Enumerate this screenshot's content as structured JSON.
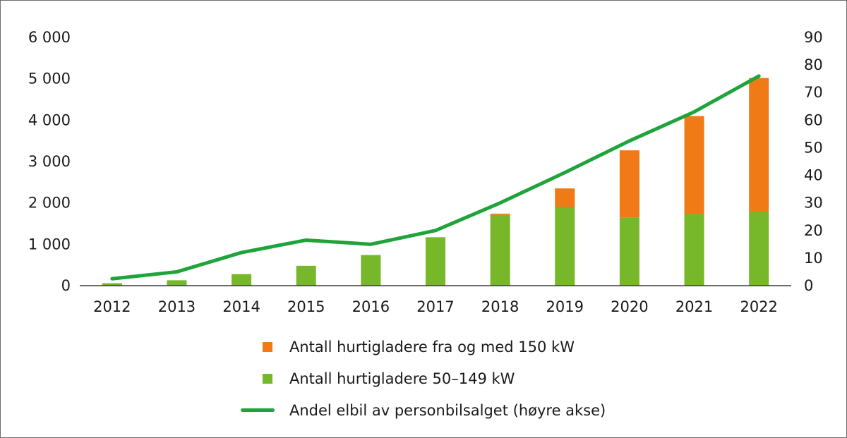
{
  "chart_data": {
    "type": "bar",
    "stacked": true,
    "categories": [
      "2012",
      "2013",
      "2014",
      "2015",
      "2016",
      "2017",
      "2018",
      "2019",
      "2020",
      "2021",
      "2022"
    ],
    "series": [
      {
        "name": "Antall hurtigladere 50–149 kW",
        "type": "bar",
        "axis": "left",
        "color": "#76b82a",
        "values": [
          60,
          130,
          280,
          480,
          740,
          1170,
          1710,
          1900,
          1640,
          1730,
          1790
        ]
      },
      {
        "name": "Antall hurtigladere fra og med 150 kW",
        "type": "bar",
        "axis": "left",
        "color": "#ef7a16",
        "values": [
          0,
          0,
          0,
          0,
          0,
          0,
          30,
          450,
          1630,
          2370,
          3230
        ]
      },
      {
        "name": "Andel elbil av personbilsalget (høyre akse)",
        "type": "line",
        "axis": "right",
        "color": "#1fa33b",
        "values": [
          2.5,
          5.0,
          12.0,
          16.5,
          15.0,
          20.0,
          30.0,
          41.0,
          52.5,
          63.0,
          76.0
        ]
      }
    ],
    "y_left": {
      "ylim": [
        0,
        6000
      ],
      "ticks": [
        "0",
        "1 000",
        "2 000",
        "3 000",
        "4 000",
        "5 000",
        "6 000"
      ],
      "tick_values": [
        0,
        1000,
        2000,
        3000,
        4000,
        5000,
        6000
      ]
    },
    "y_right": {
      "ylim": [
        0,
        90
      ],
      "ticks": [
        "0",
        "10",
        "20",
        "30",
        "40",
        "50",
        "60",
        "70",
        "80",
        "90"
      ],
      "tick_values": [
        0,
        10,
        20,
        30,
        40,
        50,
        60,
        70,
        80,
        90
      ]
    },
    "title": "",
    "xlabel": "",
    "ylabel": "",
    "grid": false,
    "legend_position": "bottom-center"
  },
  "legend": {
    "items": [
      {
        "label": "Antall hurtigladere fra og med 150 kW",
        "kind": "square",
        "color": "#ef7a16"
      },
      {
        "label": "Antall hurtigladere 50–149 kW",
        "kind": "square",
        "color": "#76b82a"
      },
      {
        "label": "Andel elbil av personbilsalget (høyre akse)",
        "kind": "line",
        "color": "#1fa33b"
      }
    ]
  }
}
